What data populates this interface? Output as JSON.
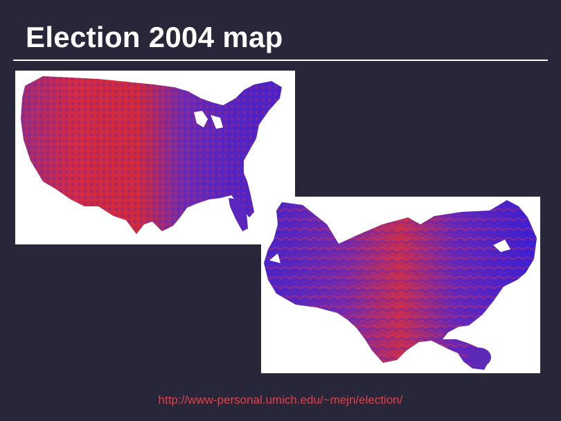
{
  "slide": {
    "title": "Election 2004 map",
    "source_url": "http://www-personal.umich.edu/~mejn/election/"
  },
  "maps": [
    {
      "name": "geographic-county-map",
      "colors": {
        "republican": "#d8283a",
        "democrat": "#4a22c8",
        "mixed": "#8a2a9a"
      }
    },
    {
      "name": "cartogram-county-map",
      "colors": {
        "republican": "#c8304a",
        "democrat": "#3f1fd0",
        "mixed": "#7d2aa8"
      }
    }
  ],
  "colors": {
    "background": "#28273a",
    "title": "#ffffff",
    "rule": "#ffffff",
    "link": "#e0414b"
  }
}
